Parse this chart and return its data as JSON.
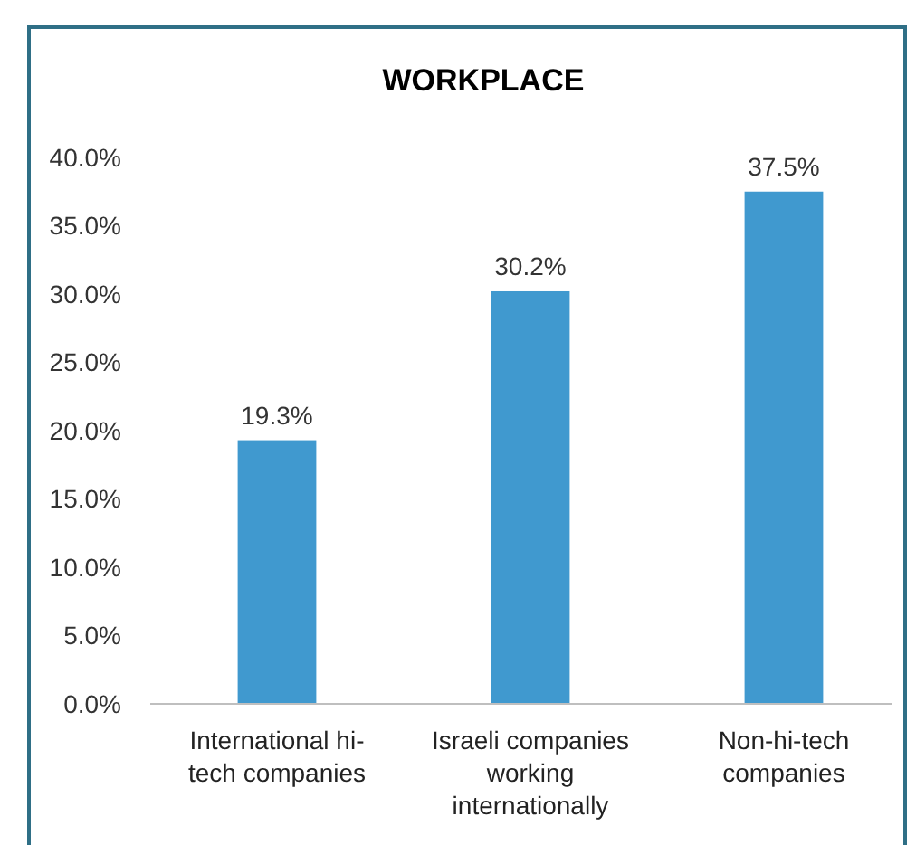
{
  "chart_data": {
    "type": "bar",
    "title": "WORKPLACE",
    "categories": [
      "International hi-tech companies",
      "Israeli companies working internationally",
      "Non-hi-tech companies"
    ],
    "values": [
      19.3,
      30.2,
      37.5
    ],
    "color": "#4099cf",
    "value_labels": [
      "19.3%",
      "30.2%",
      "37.5%"
    ],
    "ylim": [
      0,
      40
    ],
    "yticks": [
      {
        "value": 0,
        "label": "0.0%"
      },
      {
        "value": 5,
        "label": "5.0%"
      },
      {
        "value": 10,
        "label": "10.0%"
      },
      {
        "value": 15,
        "label": "15.0%"
      },
      {
        "value": 20,
        "label": "20.0%"
      },
      {
        "value": 25,
        "label": "25.0%"
      },
      {
        "value": 30,
        "label": "30.0%"
      },
      {
        "value": 35,
        "label": "35.0%"
      },
      {
        "value": 40,
        "label": "40.0%"
      }
    ],
    "grid": false
  }
}
